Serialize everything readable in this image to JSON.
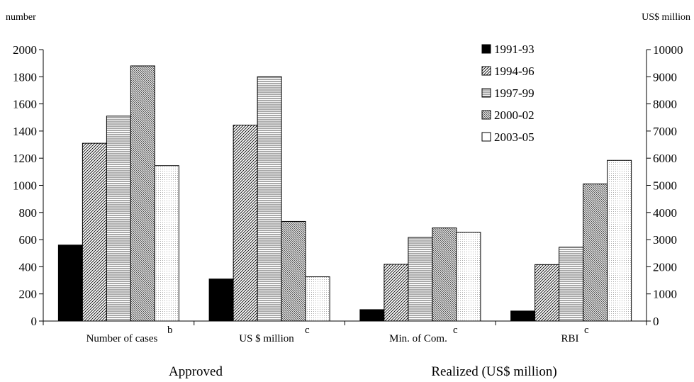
{
  "chart_data": {
    "type": "bar",
    "y_left_unit": "number",
    "y_right_unit": "US$ million",
    "ylim_left": [
      0,
      2000
    ],
    "ylim_right": [
      0,
      10000
    ],
    "y_left_ticks": [
      0,
      200,
      400,
      600,
      800,
      1000,
      1200,
      1400,
      1600,
      1800,
      2000
    ],
    "y_right_ticks": [
      0,
      1000,
      2000,
      3000,
      4000,
      5000,
      6000,
      7000,
      8000,
      9000,
      10000
    ],
    "categories": [
      {
        "label": "Number of cases",
        "sup": "b",
        "axis": "left"
      },
      {
        "label": "US $ million",
        "sup": "c",
        "axis": "right"
      },
      {
        "label": "Min. of Com.",
        "sup": "c",
        "axis": "right"
      },
      {
        "label": "RBI",
        "sup": "c",
        "axis": "right"
      }
    ],
    "groups": [
      {
        "label": "Approved"
      },
      {
        "label": "Realized (US$ million)"
      }
    ],
    "series": [
      {
        "name": "1991-93",
        "fill": "solid",
        "values": [
          560,
          1550,
          420,
          370
        ]
      },
      {
        "name": "1994-96",
        "fill": "diag-up",
        "values": [
          1310,
          7220,
          2090,
          2080
        ]
      },
      {
        "name": "1997-99",
        "fill": "horizontal",
        "values": [
          1510,
          9000,
          3080,
          2720
        ]
      },
      {
        "name": "2000-02",
        "fill": "diag-down",
        "values": [
          1880,
          3670,
          3430,
          5050
        ]
      },
      {
        "name": "2003-05",
        "fill": "dots",
        "values": [
          1145,
          1630,
          3270,
          5920
        ]
      }
    ],
    "legend_position": "top-right",
    "grid": false
  }
}
